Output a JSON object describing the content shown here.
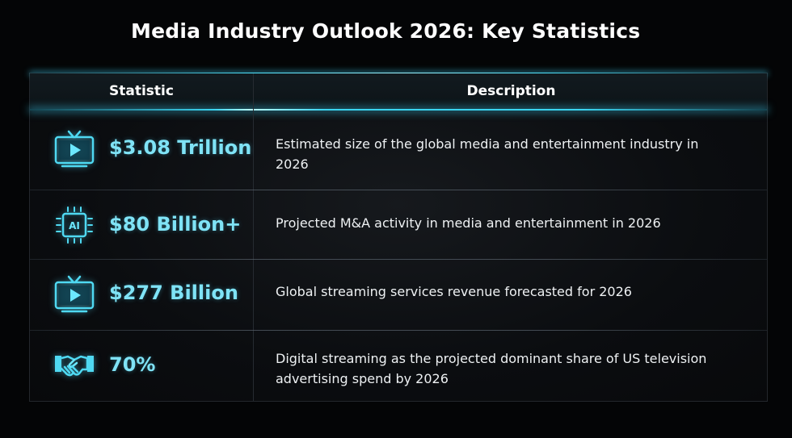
{
  "title": "Media Industry Outlook 2026: Key Statistics",
  "accent_color": "#4fe6ff",
  "stat_color": "#7fe3f6",
  "table": {
    "headers": {
      "statistic": "Statistic",
      "description": "Description"
    },
    "rows": [
      {
        "icon": "tv-play-icon",
        "statistic": "$3.08 Trillion",
        "description": "Estimated size of the global media and entertainment industry in 2026"
      },
      {
        "icon": "ai-chip-icon",
        "statistic": "$80 Billion+",
        "description": "Projected M&A activity in media and entertainment in 2026"
      },
      {
        "icon": "tv-play-icon",
        "statistic": "$277 Billion",
        "description": "Global streaming services revenue forecasted for 2026"
      },
      {
        "icon": "handshake-icon",
        "statistic": "70%",
        "description": "Digital streaming as the projected dominant share of US television advertising spend by 2026"
      }
    ]
  }
}
